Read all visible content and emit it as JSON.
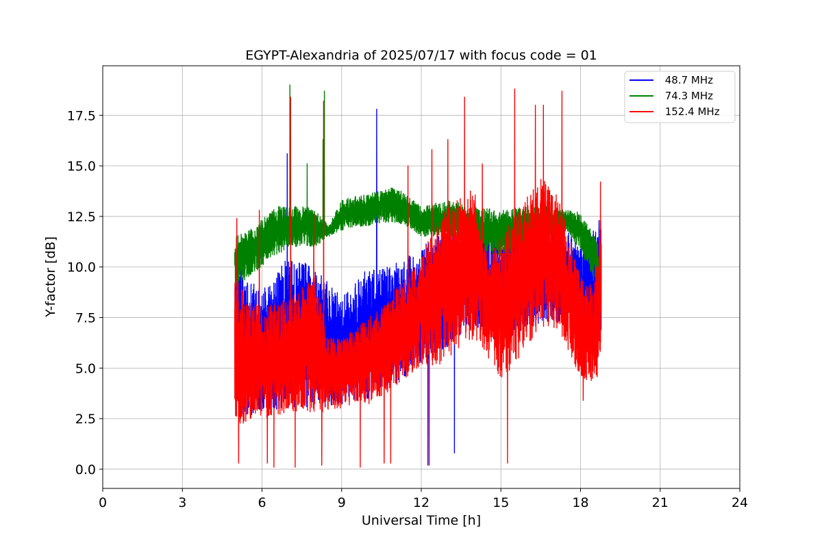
{
  "chart_data": {
    "type": "line",
    "title": "EGYPT-Alexandria of 2025/07/17 with focus code = 01",
    "xlabel": "Universal Time [h]",
    "ylabel": "Y-factor [dB]",
    "xlim": [
      0,
      24
    ],
    "ylim": [
      -0.95,
      19.95
    ],
    "x_ticks": [
      0,
      3,
      6,
      9,
      12,
      15,
      18,
      21,
      24
    ],
    "x_tick_labels": [
      "0",
      "3",
      "6",
      "9",
      "12",
      "15",
      "18",
      "21",
      "24"
    ],
    "y_ticks": [
      0.0,
      2.5,
      5.0,
      7.5,
      10.0,
      12.5,
      15.0,
      17.5
    ],
    "y_tick_labels": [
      "0.0",
      "2.5",
      "5.0",
      "7.5",
      "10.0",
      "12.5",
      "15.0",
      "17.5"
    ],
    "grid": true,
    "legend_position": "top-right",
    "data_time_range_h": [
      4.97,
      18.78
    ],
    "series": [
      {
        "name": "48.7 MHz",
        "legend_label": " 48.7 MHz",
        "color": "#0000ff",
        "envelope": [
          {
            "x": 5.0,
            "low": 2.5,
            "high": 10.2
          },
          {
            "x": 6.0,
            "low": 2.8,
            "high": 8.8
          },
          {
            "x": 7.0,
            "low": 3.0,
            "high": 10.5
          },
          {
            "x": 8.0,
            "low": 3.0,
            "high": 10.0
          },
          {
            "x": 9.0,
            "low": 3.2,
            "high": 8.5
          },
          {
            "x": 10.0,
            "low": 3.5,
            "high": 10.0
          },
          {
            "x": 11.0,
            "low": 4.2,
            "high": 10.2
          },
          {
            "x": 12.0,
            "low": 5.2,
            "high": 11.0
          },
          {
            "x": 13.0,
            "low": 6.0,
            "high": 11.8
          },
          {
            "x": 14.0,
            "low": 7.0,
            "high": 12.2
          },
          {
            "x": 15.0,
            "low": 6.2,
            "high": 11.5
          },
          {
            "x": 16.0,
            "low": 7.0,
            "high": 12.2
          },
          {
            "x": 17.0,
            "low": 7.3,
            "high": 12.5
          },
          {
            "x": 18.0,
            "low": 6.5,
            "high": 11.2
          },
          {
            "x": 18.75,
            "low": 6.0,
            "high": 12.3
          }
        ],
        "spikes": [
          {
            "x": 6.95,
            "y": 15.6
          },
          {
            "x": 10.32,
            "y": 17.8
          },
          {
            "x": 13.25,
            "y": 0.8
          },
          {
            "x": 12.25,
            "y": 0.2
          },
          {
            "x": 18.7,
            "y": 12.3
          }
        ]
      },
      {
        "name": "74.3 MHz",
        "legend_label": " 74.3 MHz",
        "color": "#008000",
        "envelope": [
          {
            "x": 5.0,
            "low": 9.0,
            "high": 11.5
          },
          {
            "x": 5.5,
            "low": 9.5,
            "high": 11.8
          },
          {
            "x": 6.0,
            "low": 10.0,
            "high": 12.5
          },
          {
            "x": 6.5,
            "low": 10.5,
            "high": 13.0
          },
          {
            "x": 7.0,
            "low": 11.0,
            "high": 13.0
          },
          {
            "x": 7.5,
            "low": 11.0,
            "high": 13.0
          },
          {
            "x": 8.0,
            "low": 11.0,
            "high": 13.0
          },
          {
            "x": 8.5,
            "low": 11.5,
            "high": 12.0
          },
          {
            "x": 9.0,
            "low": 11.8,
            "high": 13.3
          },
          {
            "x": 9.5,
            "low": 12.0,
            "high": 13.5
          },
          {
            "x": 10.0,
            "low": 12.0,
            "high": 13.6
          },
          {
            "x": 10.5,
            "low": 12.2,
            "high": 13.8
          },
          {
            "x": 11.0,
            "low": 12.2,
            "high": 14.0
          },
          {
            "x": 11.5,
            "low": 12.0,
            "high": 13.5
          },
          {
            "x": 12.0,
            "low": 11.5,
            "high": 13.0
          },
          {
            "x": 13.0,
            "low": 11.5,
            "high": 13.3
          },
          {
            "x": 14.0,
            "low": 11.0,
            "high": 13.0
          },
          {
            "x": 15.0,
            "low": 10.5,
            "high": 12.8
          },
          {
            "x": 16.0,
            "low": 11.0,
            "high": 13.0
          },
          {
            "x": 17.0,
            "low": 11.5,
            "high": 13.0
          },
          {
            "x": 17.5,
            "low": 11.8,
            "high": 12.8
          },
          {
            "x": 18.0,
            "low": 10.8,
            "high": 12.7
          },
          {
            "x": 18.75,
            "low": 8.5,
            "high": 11.0
          }
        ],
        "spikes": [
          {
            "x": 7.05,
            "y": 19.0
          },
          {
            "x": 8.35,
            "y": 18.7
          },
          {
            "x": 7.7,
            "y": 15.1
          },
          {
            "x": 8.3,
            "y": 16.3
          }
        ]
      },
      {
        "name": "152.4 MHz",
        "legend_label": " 152.4 MHz",
        "color": "#ff0000",
        "envelope": [
          {
            "x": 5.0,
            "low": 2.2,
            "high": 9.5
          },
          {
            "x": 5.5,
            "low": 2.3,
            "high": 8.5
          },
          {
            "x": 6.0,
            "low": 2.5,
            "high": 8.0
          },
          {
            "x": 6.5,
            "low": 2.6,
            "high": 8.2
          },
          {
            "x": 7.0,
            "low": 2.8,
            "high": 8.5
          },
          {
            "x": 7.5,
            "low": 2.8,
            "high": 9.0
          },
          {
            "x": 8.0,
            "low": 2.8,
            "high": 9.5
          },
          {
            "x": 8.5,
            "low": 2.8,
            "high": 6.5
          },
          {
            "x": 9.0,
            "low": 3.0,
            "high": 6.5
          },
          {
            "x": 9.5,
            "low": 3.2,
            "high": 7.0
          },
          {
            "x": 10.0,
            "low": 3.2,
            "high": 7.5
          },
          {
            "x": 10.5,
            "low": 3.6,
            "high": 8.0
          },
          {
            "x": 11.0,
            "low": 4.0,
            "high": 9.0
          },
          {
            "x": 11.5,
            "low": 4.5,
            "high": 9.5
          },
          {
            "x": 12.0,
            "low": 5.0,
            "high": 10.5
          },
          {
            "x": 12.5,
            "low": 5.0,
            "high": 12.0
          },
          {
            "x": 13.0,
            "low": 5.5,
            "high": 13.0
          },
          {
            "x": 13.5,
            "low": 6.0,
            "high": 13.5
          },
          {
            "x": 14.0,
            "low": 6.5,
            "high": 14.0
          },
          {
            "x": 14.5,
            "low": 5.5,
            "high": 11.0
          },
          {
            "x": 15.0,
            "low": 4.5,
            "high": 11.5
          },
          {
            "x": 15.5,
            "low": 5.0,
            "high": 12.5
          },
          {
            "x": 16.0,
            "low": 6.0,
            "high": 13.5
          },
          {
            "x": 16.5,
            "low": 7.0,
            "high": 14.5
          },
          {
            "x": 17.0,
            "low": 7.0,
            "high": 14.0
          },
          {
            "x": 17.5,
            "low": 6.0,
            "high": 12.0
          },
          {
            "x": 18.0,
            "low": 4.5,
            "high": 9.5
          },
          {
            "x": 18.5,
            "low": 4.0,
            "high": 9.0
          },
          {
            "x": 18.75,
            "low": 5.0,
            "high": 12.0
          }
        ],
        "spikes": [
          {
            "x": 5.05,
            "y": 12.4
          },
          {
            "x": 5.12,
            "y": 0.3
          },
          {
            "x": 5.9,
            "y": 12.8
          },
          {
            "x": 6.2,
            "y": 0.3
          },
          {
            "x": 6.45,
            "y": 0.1
          },
          {
            "x": 7.08,
            "y": 18.4
          },
          {
            "x": 7.25,
            "y": 0.1
          },
          {
            "x": 7.95,
            "y": 12.6
          },
          {
            "x": 8.32,
            "y": 18.2
          },
          {
            "x": 8.25,
            "y": 0.2
          },
          {
            "x": 9.7,
            "y": 0.1
          },
          {
            "x": 10.6,
            "y": 0.3
          },
          {
            "x": 10.85,
            "y": 0.3
          },
          {
            "x": 11.5,
            "y": 15.0
          },
          {
            "x": 12.3,
            "y": 0.2
          },
          {
            "x": 12.4,
            "y": 15.8
          },
          {
            "x": 13.0,
            "y": 16.3
          },
          {
            "x": 13.63,
            "y": 18.4
          },
          {
            "x": 14.3,
            "y": 15.1
          },
          {
            "x": 15.25,
            "y": 0.3
          },
          {
            "x": 15.52,
            "y": 18.8
          },
          {
            "x": 16.3,
            "y": 18.0
          },
          {
            "x": 16.6,
            "y": 18.0
          },
          {
            "x": 17.3,
            "y": 18.7
          },
          {
            "x": 18.1,
            "y": 3.4
          },
          {
            "x": 18.75,
            "y": 14.2
          }
        ]
      }
    ]
  }
}
